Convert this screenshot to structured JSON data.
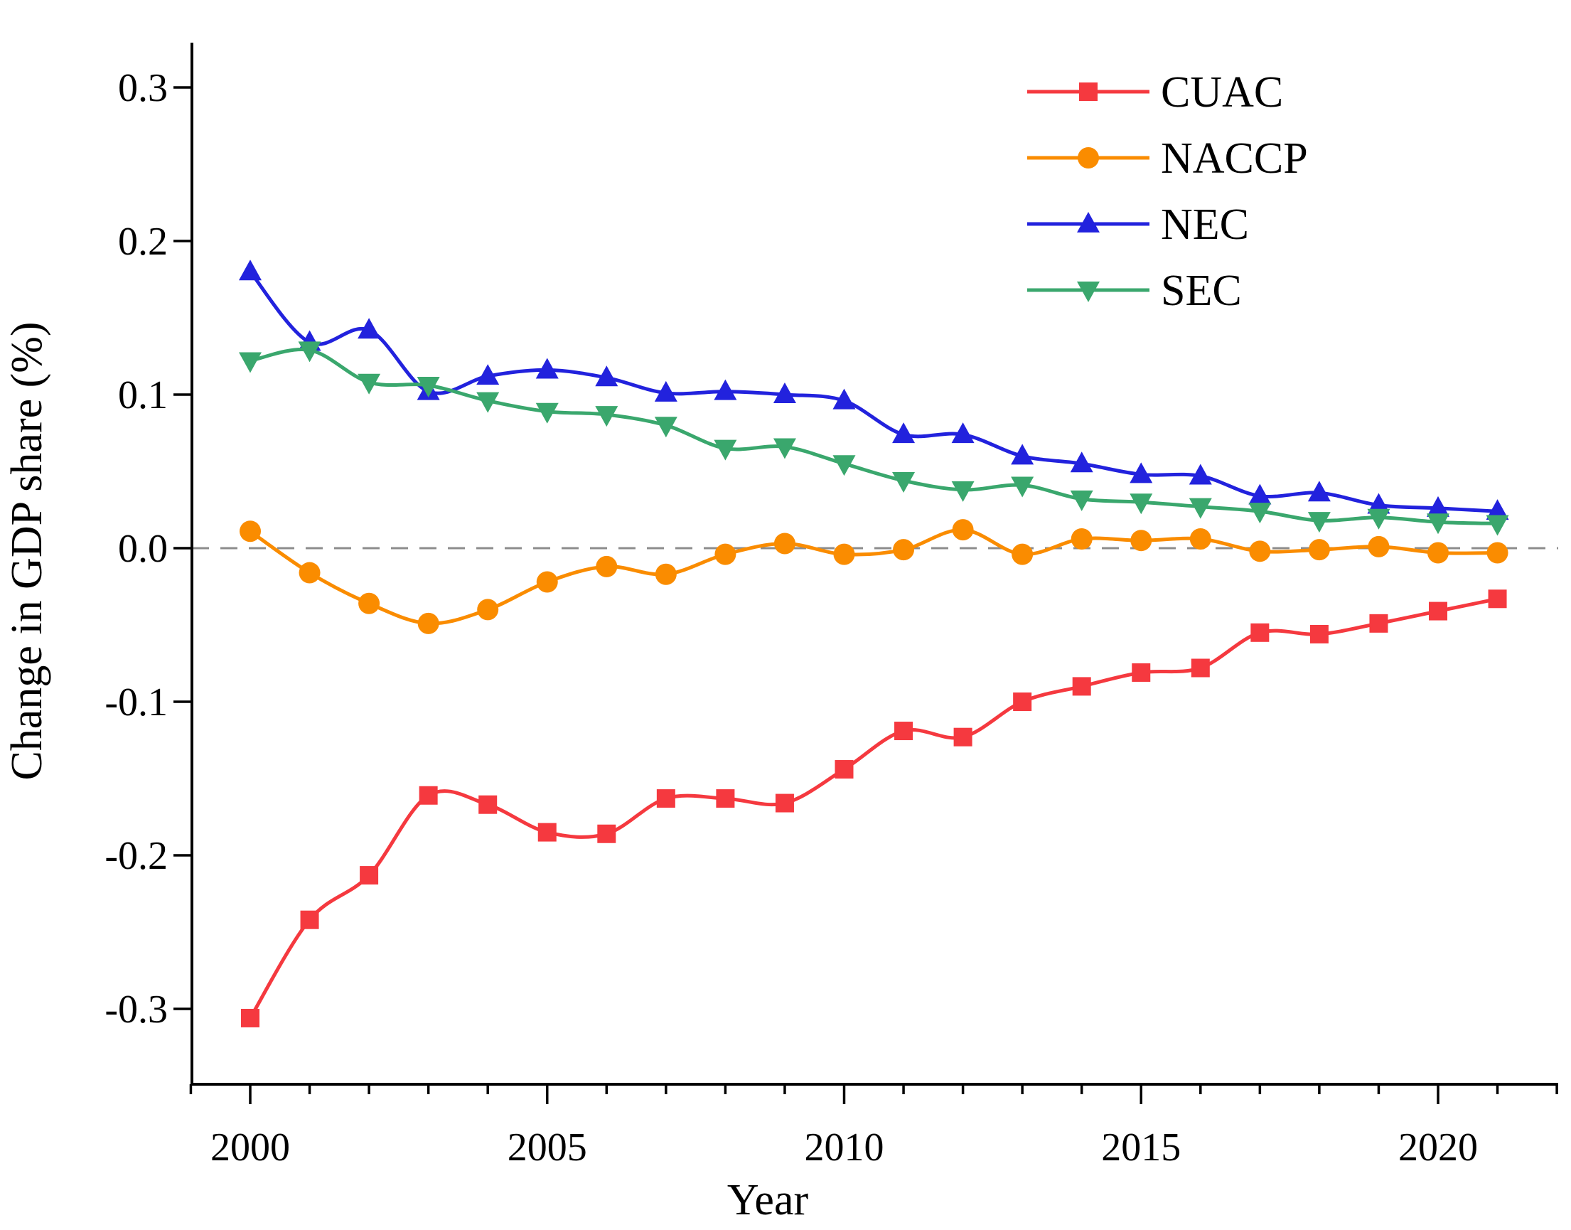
{
  "figure": {
    "background": "#ffffff",
    "axis_color": "#000000"
  },
  "chart_data": {
    "type": "line",
    "title": "",
    "xlabel": "Year",
    "ylabel": "Change in GDP share (%)",
    "x": [
      2000,
      2001,
      2002,
      2003,
      2004,
      2005,
      2006,
      2007,
      2008,
      2009,
      2010,
      2011,
      2012,
      2013,
      2014,
      2015,
      2016,
      2017,
      2018,
      2019,
      2020,
      2021
    ],
    "xlim": [
      1999,
      2022
    ],
    "ylim": [
      -0.349,
      0.318
    ],
    "grid": "off",
    "yticks": {
      "values": [
        0.3,
        0.2,
        0.1,
        0.0,
        -0.1,
        -0.2,
        -0.3
      ],
      "labels": [
        "0.3",
        "0.2",
        "0.1",
        "0.0",
        "-0.1",
        "-0.2",
        "-0.3"
      ]
    },
    "xticks": {
      "major_values": [
        2000,
        2005,
        2010,
        2015,
        2020
      ],
      "major_labels": [
        "2000",
        "2005",
        "2010",
        "2015",
        "2020"
      ],
      "minor_tick_every_year": true
    },
    "zero_line": {
      "value": 0.0,
      "style": "dashed",
      "color": "#8c8c8c"
    },
    "legend": {
      "position": "upper-right",
      "entries": [
        {
          "label": "CUAC",
          "marker": "square",
          "color": "#f5393f"
        },
        {
          "label": "NACCP",
          "marker": "circle",
          "color": "#fa8c00"
        },
        {
          "label": "NEC",
          "marker": "triangle-up",
          "color": "#2222dd"
        },
        {
          "label": "SEC",
          "marker": "triangle-down",
          "color": "#3aa76d"
        }
      ]
    },
    "series": [
      {
        "name": "CUAC",
        "color": "#f5393f",
        "marker": "square",
        "values": [
          -0.306,
          -0.242,
          -0.213,
          -0.161,
          -0.167,
          -0.185,
          -0.186,
          -0.163,
          -0.163,
          -0.166,
          -0.144,
          -0.119,
          -0.123,
          -0.1,
          -0.09,
          -0.081,
          -0.078,
          -0.055,
          -0.056,
          -0.049,
          -0.041,
          -0.033
        ]
      },
      {
        "name": "NACCP",
        "color": "#fa8c00",
        "marker": "circle",
        "values": [
          0.011,
          -0.016,
          -0.036,
          -0.049,
          -0.04,
          -0.022,
          -0.012,
          -0.017,
          -0.004,
          0.003,
          -0.004,
          -0.001,
          0.012,
          -0.004,
          0.006,
          0.005,
          0.006,
          -0.002,
          -0.001,
          0.001,
          -0.003,
          -0.003
        ]
      },
      {
        "name": "NEC",
        "color": "#2222dd",
        "marker": "triangle-up",
        "values": [
          0.18,
          0.134,
          0.142,
          0.102,
          0.112,
          0.116,
          0.111,
          0.101,
          0.102,
          0.1,
          0.096,
          0.074,
          0.074,
          0.06,
          0.055,
          0.048,
          0.047,
          0.034,
          0.036,
          0.028,
          0.026,
          0.024
        ]
      },
      {
        "name": "SEC",
        "color": "#3aa76d",
        "marker": "triangle-down",
        "values": [
          0.122,
          0.129,
          0.108,
          0.106,
          0.096,
          0.089,
          0.087,
          0.08,
          0.065,
          0.066,
          0.055,
          0.044,
          0.038,
          0.041,
          0.032,
          0.03,
          0.027,
          0.024,
          0.018,
          0.02,
          0.017,
          0.016
        ]
      }
    ]
  }
}
